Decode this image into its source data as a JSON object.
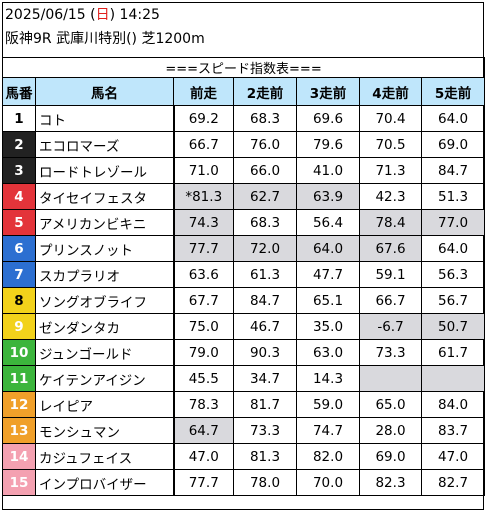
{
  "header": {
    "date": "2025/06/15",
    "day_open": " (",
    "weekday": "日",
    "day_close": ") ",
    "time": "14:25",
    "race": "阪神9R 武庫川特別() 芝1200m"
  },
  "table": {
    "title": "===スピード指数表===",
    "columns": [
      "馬番",
      "馬名",
      "前走",
      "2走前",
      "3走前",
      "4走前",
      "5走前"
    ],
    "rows": [
      {
        "no": "1",
        "name": "コト",
        "vals": [
          "69.2",
          "68.3",
          "69.6",
          "70.4",
          "64.0"
        ],
        "hl": [
          false,
          false,
          false,
          false,
          false
        ],
        "color": "#ffffff",
        "fg": "#000000"
      },
      {
        "no": "2",
        "name": "エコロマーズ",
        "vals": [
          "66.7",
          "76.0",
          "79.6",
          "70.5",
          "69.0"
        ],
        "hl": [
          false,
          false,
          false,
          false,
          false
        ],
        "color": "#222222",
        "fg": "#ffffff"
      },
      {
        "no": "3",
        "name": "ロードトレゾール",
        "vals": [
          "71.0",
          "66.0",
          "41.0",
          "71.3",
          "84.7"
        ],
        "hl": [
          false,
          false,
          false,
          false,
          false
        ],
        "color": "#222222",
        "fg": "#ffffff"
      },
      {
        "no": "4",
        "name": "タイセイフェスタ",
        "vals": [
          "*81.3",
          "62.7",
          "63.9",
          "42.3",
          "51.3"
        ],
        "hl": [
          true,
          true,
          true,
          false,
          false
        ],
        "color": "#e3343a",
        "fg": "#ffffff"
      },
      {
        "no": "5",
        "name": "アメリカンビキニ",
        "vals": [
          "74.3",
          "68.3",
          "56.4",
          "78.4",
          "77.0"
        ],
        "hl": [
          true,
          false,
          false,
          true,
          true
        ],
        "color": "#e3343a",
        "fg": "#ffffff"
      },
      {
        "no": "6",
        "name": "プリンスノット",
        "vals": [
          "77.7",
          "72.0",
          "64.0",
          "67.6",
          "64.0"
        ],
        "hl": [
          true,
          true,
          true,
          true,
          false
        ],
        "color": "#2c6fd1",
        "fg": "#ffffff"
      },
      {
        "no": "7",
        "name": "スカプラリオ",
        "vals": [
          "63.6",
          "61.3",
          "47.7",
          "59.1",
          "56.3"
        ],
        "hl": [
          false,
          false,
          false,
          false,
          false
        ],
        "color": "#2c6fd1",
        "fg": "#ffffff"
      },
      {
        "no": "8",
        "name": "ソングオブライフ",
        "vals": [
          "67.7",
          "84.7",
          "65.1",
          "66.7",
          "56.7"
        ],
        "hl": [
          false,
          false,
          false,
          false,
          false
        ],
        "color": "#f2d21b",
        "fg": "#000000"
      },
      {
        "no": "9",
        "name": "ゼンダンタカ",
        "vals": [
          "75.0",
          "46.7",
          "35.0",
          "-6.7",
          "50.7"
        ],
        "hl": [
          false,
          false,
          false,
          true,
          true
        ],
        "color": "#f2d21b",
        "fg": "#ffffff"
      },
      {
        "no": "10",
        "name": "ジュンゴールド",
        "vals": [
          "79.0",
          "90.3",
          "63.0",
          "73.3",
          "61.7"
        ],
        "hl": [
          false,
          false,
          false,
          false,
          false
        ],
        "color": "#3cb53c",
        "fg": "#ffffff"
      },
      {
        "no": "11",
        "name": "ケイテンアイジン",
        "vals": [
          "45.5",
          "34.7",
          "14.3",
          "",
          ""
        ],
        "hl": [
          false,
          false,
          false,
          true,
          true
        ],
        "color": "#3cb53c",
        "fg": "#ffffff"
      },
      {
        "no": "12",
        "name": "レイピア",
        "vals": [
          "78.3",
          "81.7",
          "59.0",
          "65.0",
          "84.0"
        ],
        "hl": [
          false,
          false,
          false,
          false,
          false
        ],
        "color": "#f0a02a",
        "fg": "#ffffff"
      },
      {
        "no": "13",
        "name": "モンシュマン",
        "vals": [
          "64.7",
          "73.3",
          "74.7",
          "28.0",
          "83.7"
        ],
        "hl": [
          true,
          false,
          false,
          false,
          false
        ],
        "color": "#f0a02a",
        "fg": "#ffffff"
      },
      {
        "no": "14",
        "name": "カジュフェイス",
        "vals": [
          "47.0",
          "81.3",
          "82.0",
          "69.0",
          "47.0"
        ],
        "hl": [
          false,
          false,
          false,
          false,
          false
        ],
        "color": "#f4a1b1",
        "fg": "#ffffff"
      },
      {
        "no": "15",
        "name": "インプロバイザー",
        "vals": [
          "77.7",
          "78.0",
          "70.0",
          "82.3",
          "82.7"
        ],
        "hl": [
          false,
          false,
          false,
          false,
          false
        ],
        "color": "#f4a1b1",
        "fg": "#ffffff"
      }
    ]
  }
}
